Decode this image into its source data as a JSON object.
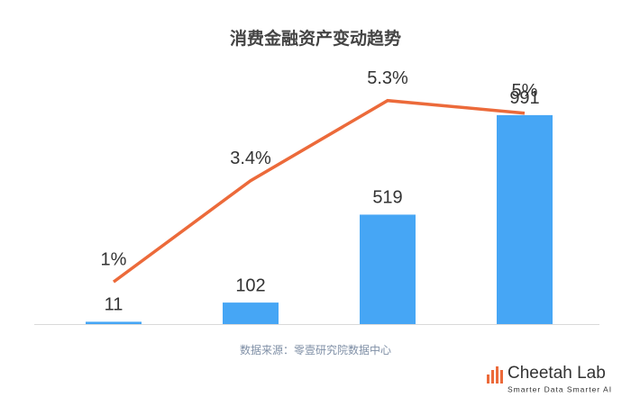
{
  "chart_data": {
    "type": "bar",
    "title": "消费金融资产变动趋势",
    "categories": [
      null,
      null,
      null,
      null
    ],
    "series": [
      {
        "type": "bar",
        "color": "#46a6f5",
        "values": [
          11,
          102,
          519,
          991
        ]
      },
      {
        "type": "line",
        "axis": "y2",
        "color": "#ec6a3a",
        "values": [
          1,
          3.4,
          5.3,
          5
        ],
        "value_labels": [
          "1%",
          "3.4%",
          "5.3%",
          "5%"
        ]
      }
    ],
    "ylim": [
      0,
      1110
    ],
    "y2lim": [
      0,
      5.55
    ],
    "source": "数据来源：零壹研究院数据中心"
  },
  "logo": {
    "name": "Cheetah Lab",
    "tagline": "Smarter Data Smarter AI"
  }
}
